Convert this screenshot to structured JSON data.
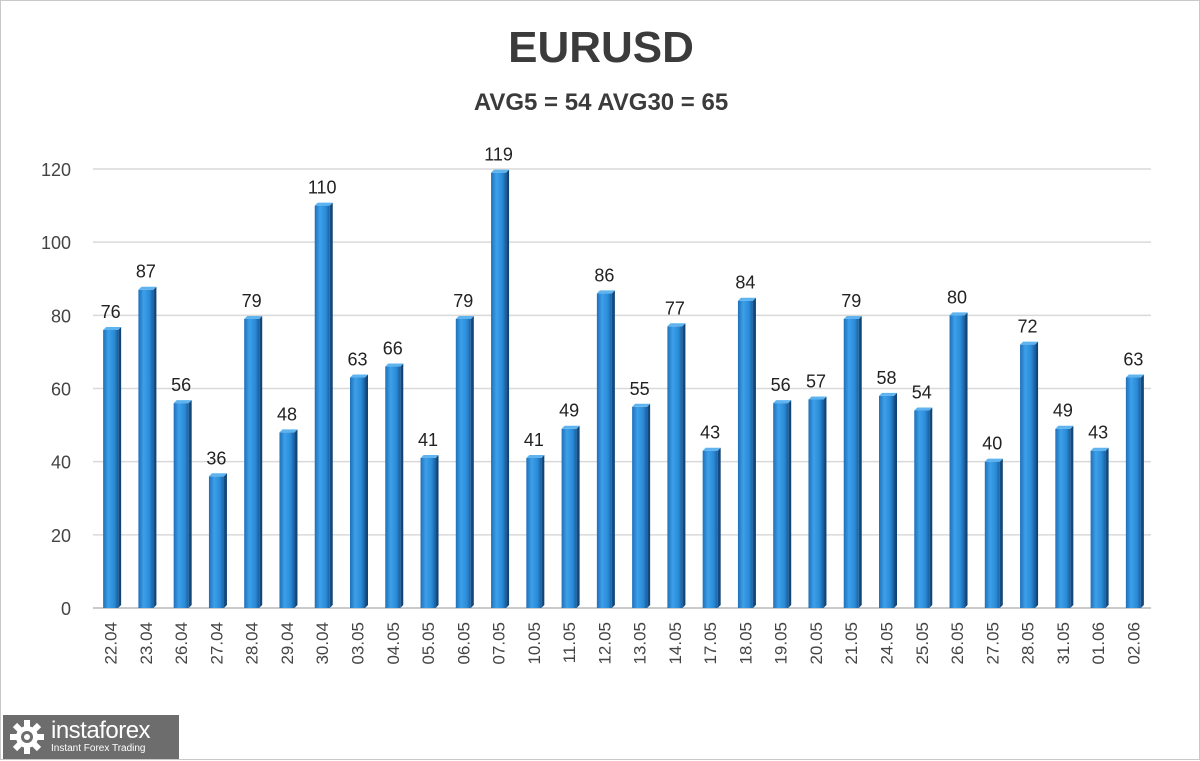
{
  "chart_data": {
    "type": "bar",
    "title": "EURUSD",
    "subtitle": "AVG5 = 54 AVG30 = 65",
    "categories": [
      "22.04",
      "23.04",
      "26.04",
      "27.04",
      "28.04",
      "29.04",
      "30.04",
      "03.05",
      "04.05",
      "05.05",
      "06.05",
      "07.05",
      "10.05",
      "11.05",
      "12.05",
      "13.05",
      "14.05",
      "17.05",
      "18.05",
      "19.05",
      "20.05",
      "21.05",
      "24.05",
      "25.05",
      "26.05",
      "27.05",
      "28.05",
      "31.05",
      "01.06",
      "02.06"
    ],
    "values": [
      76,
      87,
      56,
      36,
      79,
      48,
      110,
      63,
      66,
      41,
      79,
      119,
      41,
      49,
      86,
      55,
      77,
      43,
      84,
      56,
      57,
      79,
      58,
      54,
      80,
      40,
      72,
      49,
      43,
      63
    ],
    "ylim": [
      0,
      120
    ],
    "yticks": [
      0,
      20,
      40,
      60,
      80,
      100,
      120
    ],
    "grid": true,
    "data_labels": true,
    "bar_color": "#2f8fd8",
    "xlabel": "",
    "ylabel": ""
  },
  "watermark": {
    "name": "instaforex",
    "tagline": "Instant Forex Trading"
  }
}
